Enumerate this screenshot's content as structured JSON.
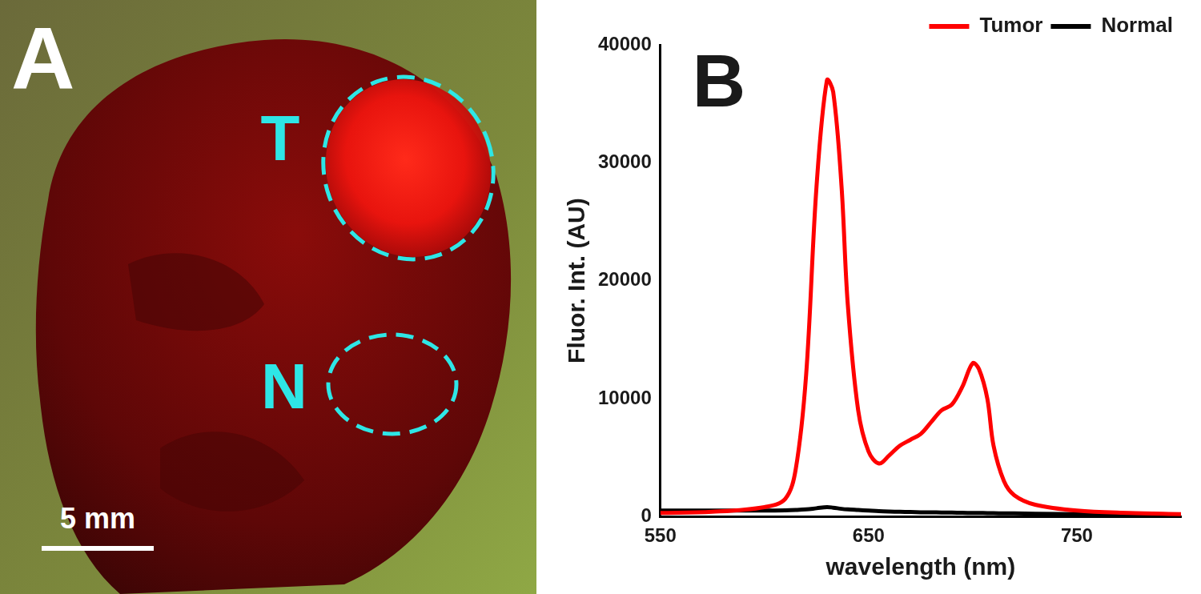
{
  "image": {
    "panel_label": "A",
    "region_labels": [
      "T",
      "N"
    ],
    "scale_bar": "5 mm"
  },
  "chart_data": {
    "type": "line",
    "title": "B",
    "x_label": "wavelength (nm)",
    "y_label": "Fluor. Int. (AU)",
    "x": [
      550,
      575,
      600,
      610,
      615,
      620,
      625,
      630,
      633,
      637,
      640,
      645,
      650,
      655,
      660,
      665,
      670,
      675,
      680,
      685,
      690,
      695,
      700,
      703,
      707,
      710,
      715,
      720,
      730,
      750,
      775,
      800
    ],
    "series": [
      {
        "name": "Tumor",
        "color": "#ff0000",
        "values": [
          300,
          400,
          800,
          1500,
          4000,
          12000,
          28000,
          37000,
          36000,
          28000,
          18000,
          9000,
          5500,
          4500,
          5200,
          6000,
          6500,
          7000,
          8000,
          9000,
          9500,
          11000,
          13000,
          12500,
          10000,
          6000,
          3000,
          1800,
          1000,
          500,
          300,
          200
        ]
      },
      {
        "name": "Normal",
        "color": "#000000",
        "values": [
          500,
          500,
          500,
          520,
          550,
          600,
          700,
          800,
          750,
          650,
          600,
          550,
          500,
          450,
          420,
          400,
          380,
          360,
          350,
          340,
          330,
          320,
          300,
          300,
          290,
          280,
          270,
          260,
          240,
          200,
          150,
          100
        ]
      }
    ],
    "xlim": [
      550,
      800
    ],
    "xticks": [
      550,
      650,
      750
    ],
    "ylim": [
      0,
      40000
    ],
    "yticks": [
      0,
      10000,
      20000,
      30000,
      40000
    ],
    "grid": false,
    "legend": "upper right"
  }
}
